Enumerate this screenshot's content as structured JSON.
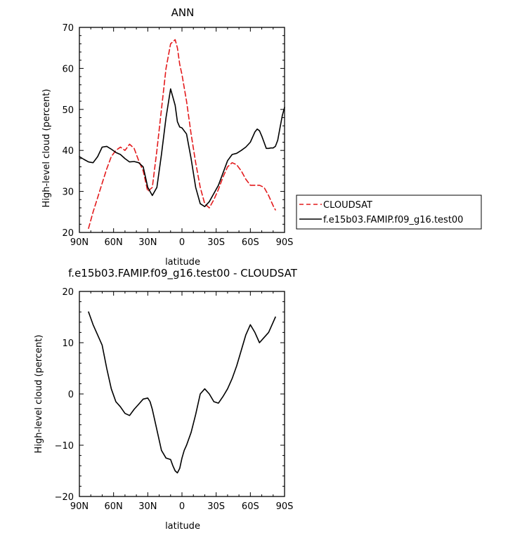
{
  "chart_data": [
    {
      "type": "line",
      "title": "ANN",
      "xlabel": "latitude",
      "ylabel": "High-level cloud (percent)",
      "xlim": [
        90,
        -90
      ],
      "ylim": [
        20,
        70
      ],
      "xticks": [
        90,
        60,
        30,
        0,
        -30,
        -60,
        -90
      ],
      "xtick_labels": [
        "90N",
        "60N",
        "30N",
        "0",
        "30S",
        "60S",
        "90S"
      ],
      "yticks": [
        20,
        30,
        40,
        50,
        60,
        70
      ],
      "ytick_labels": [
        "20",
        "30",
        "40",
        "50",
        "60",
        "70"
      ],
      "grid": false,
      "legend": "right",
      "series": [
        {
          "name": "CLOUDSAT",
          "color": "#e31a1c",
          "dash": "dashed",
          "x": [
            82,
            78,
            74,
            70,
            66,
            62,
            58,
            54,
            50,
            46,
            42,
            38,
            34,
            30,
            26,
            22,
            18,
            14,
            10,
            6,
            4,
            2,
            0,
            -4,
            -8,
            -12,
            -16,
            -20,
            -24,
            -28,
            -32,
            -36,
            -40,
            -44,
            -48,
            -52,
            -56,
            -60,
            -64,
            -68,
            -72,
            -76,
            -80,
            -82
          ],
          "y": [
            21,
            25,
            28.5,
            32,
            35.5,
            38.5,
            40,
            40.8,
            40,
            41.5,
            40.5,
            37.5,
            35,
            30,
            31,
            40,
            50,
            60,
            66,
            67,
            65,
            61,
            58.5,
            52,
            44,
            37,
            31,
            27,
            26,
            28,
            30.5,
            33.5,
            36,
            37,
            36.5,
            35,
            33,
            31.5,
            31.5,
            31.5,
            31,
            29,
            26.5,
            25.5
          ]
        },
        {
          "name": "f.e15b03.FAMIP.f09_g16.test00",
          "color": "#000000",
          "dash": "solid",
          "x": [
            90,
            86,
            82,
            78,
            74,
            70,
            66,
            62,
            58,
            54,
            50,
            46,
            42,
            38,
            34,
            30,
            26,
            22,
            18,
            14,
            10,
            6,
            4,
            2,
            0,
            -4,
            -8,
            -12,
            -16,
            -20,
            -24,
            -28,
            -32,
            -36,
            -40,
            -44,
            -48,
            -52,
            -56,
            -60,
            -64,
            -66,
            -68,
            -70,
            -72,
            -74,
            -76,
            -78,
            -80,
            -82,
            -84,
            -86,
            -88,
            -90
          ],
          "y": [
            38.5,
            37.8,
            37.2,
            37,
            38.5,
            40.8,
            41,
            40.3,
            39.5,
            39,
            38,
            37.2,
            37.3,
            37,
            36,
            31,
            29,
            31,
            39,
            48,
            55,
            51,
            47,
            45.7,
            45.5,
            44,
            38,
            31,
            27,
            26.3,
            27.5,
            29.5,
            31.5,
            34.5,
            37.5,
            39,
            39.3,
            40,
            40.8,
            42,
            44.5,
            45.2,
            44.8,
            43.5,
            42,
            40.5,
            40.5,
            40.6,
            40.6,
            41,
            42.5,
            45.5,
            48.5,
            50.5
          ]
        }
      ]
    },
    {
      "type": "line",
      "title": "f.e15b03.FAMIP.f09_g16.test00 - CLOUDSAT",
      "xlabel": "latitude",
      "ylabel": "High-level cloud (percent)",
      "xlim": [
        90,
        -90
      ],
      "ylim": [
        -20,
        20
      ],
      "xticks": [
        90,
        60,
        30,
        0,
        -30,
        -60,
        -90
      ],
      "xtick_labels": [
        "90N",
        "60N",
        "30N",
        "0",
        "30S",
        "60S",
        "90S"
      ],
      "yticks": [
        -20,
        -10,
        0,
        10,
        20
      ],
      "ytick_labels": [
        "−20",
        "−10",
        "0",
        "10",
        "20"
      ],
      "grid": false,
      "series": [
        {
          "color": "#000000",
          "dash": "solid",
          "x": [
            82,
            78,
            74,
            70,
            66,
            62,
            58,
            54,
            50,
            46,
            42,
            38,
            34,
            30,
            28,
            26,
            22,
            18,
            14,
            10,
            8,
            6,
            4,
            2,
            0,
            -2,
            -4,
            -8,
            -12,
            -16,
            -20,
            -24,
            -28,
            -32,
            -36,
            -40,
            -44,
            -48,
            -52,
            -56,
            -60,
            -64,
            -68,
            -72,
            -76,
            -80,
            -82
          ],
          "y": [
            16,
            13.5,
            11.5,
            9.5,
            5,
            1,
            -1.5,
            -2.5,
            -3.8,
            -4.2,
            -3,
            -2,
            -1,
            -0.8,
            -1.5,
            -3,
            -7,
            -11,
            -12.5,
            -12.8,
            -14,
            -15,
            -15.4,
            -14.5,
            -12.5,
            -11,
            -10,
            -7.5,
            -4,
            0,
            1,
            0,
            -1.5,
            -1.8,
            -0.5,
            1,
            3,
            5.5,
            8.5,
            11.5,
            13.5,
            12,
            10,
            11,
            12,
            14,
            15
          ]
        }
      ]
    }
  ]
}
